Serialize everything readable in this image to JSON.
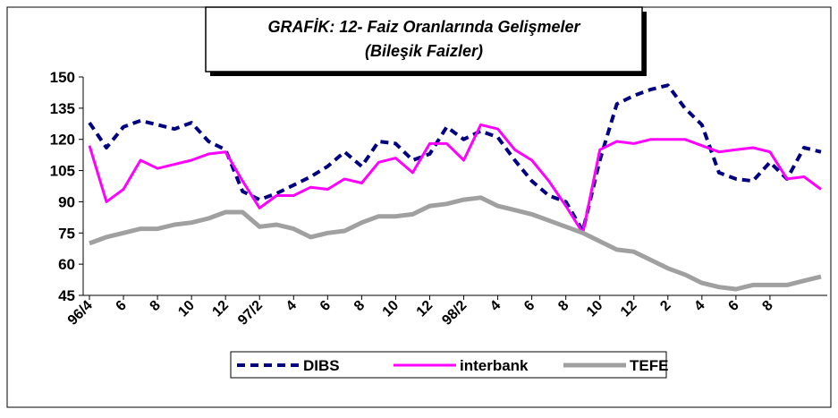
{
  "chart_data": {
    "type": "line",
    "title": "GRAFİK: 12- Faiz Oranlarında Gelişmeler",
    "subtitle": "(Bileşik Faizler)",
    "categories": [
      "96/4",
      null,
      "6",
      null,
      "8",
      null,
      "10",
      null,
      "12",
      null,
      "97/2",
      null,
      "4",
      null,
      "6",
      null,
      "8",
      null,
      "10",
      null,
      "12",
      null,
      "98/2",
      null,
      "4",
      null,
      "6",
      null,
      "8",
      null,
      "10",
      null,
      "12",
      null,
      "2",
      null,
      "4",
      null,
      "6",
      null,
      "8",
      null,
      null,
      null
    ],
    "series": [
      {
        "name": "DIBS",
        "color": "#000080",
        "values": [
          128,
          116,
          126,
          129,
          127,
          125,
          128,
          119,
          115,
          95,
          91,
          94,
          98,
          102,
          107,
          114,
          107,
          119,
          118,
          110,
          113,
          126,
          120,
          124,
          121,
          110,
          100,
          93,
          90,
          76,
          110,
          137,
          141,
          144,
          146,
          135,
          127,
          104,
          101,
          100,
          109,
          101,
          116,
          114
        ]
      },
      {
        "name": "interbank",
        "color": "#ff00ff",
        "values": [
          117,
          90,
          96,
          110,
          106,
          108,
          110,
          113,
          114,
          100,
          87,
          93,
          93,
          97,
          96,
          101,
          99,
          109,
          111,
          104,
          118,
          118,
          110,
          127,
          125,
          115,
          110,
          100,
          88,
          75,
          115,
          119,
          118,
          120,
          120,
          120,
          117,
          114,
          115,
          116,
          114,
          101,
          102,
          96
        ]
      },
      {
        "name": "TEFE",
        "color": "#a0a0a0",
        "values": [
          70,
          73,
          75,
          77,
          77,
          79,
          80,
          82,
          85,
          85,
          78,
          79,
          77,
          73,
          75,
          76,
          80,
          83,
          83,
          84,
          88,
          89,
          91,
          92,
          88,
          86,
          84,
          81,
          78,
          75,
          71,
          67,
          66,
          62,
          58,
          55,
          51,
          49,
          48,
          50,
          50,
          50,
          52,
          54
        ]
      }
    ],
    "ylim": [
      45,
      150
    ],
    "yticks": [
      45,
      60,
      75,
      90,
      105,
      120,
      135,
      150
    ],
    "grid": false
  }
}
